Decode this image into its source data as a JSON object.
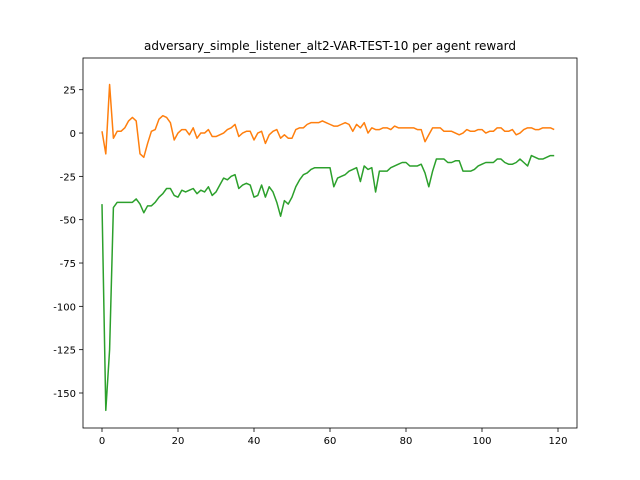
{
  "chart_data": {
    "type": "line",
    "title": "adversary_simple_listener_alt2-VAR-TEST-10 per agent reward",
    "x": [
      0,
      1,
      2,
      3,
      4,
      5,
      6,
      7,
      8,
      9,
      10,
      11,
      12,
      13,
      14,
      15,
      16,
      17,
      18,
      19,
      20,
      21,
      22,
      23,
      24,
      25,
      26,
      27,
      28,
      29,
      30,
      31,
      32,
      33,
      34,
      35,
      36,
      37,
      38,
      39,
      40,
      41,
      42,
      43,
      44,
      45,
      46,
      47,
      48,
      49,
      50,
      51,
      52,
      53,
      54,
      55,
      56,
      57,
      58,
      59,
      60,
      61,
      62,
      63,
      64,
      65,
      66,
      67,
      68,
      69,
      70,
      71,
      72,
      73,
      74,
      75,
      76,
      77,
      78,
      79,
      80,
      81,
      82,
      83,
      84,
      85,
      86,
      87,
      88,
      89,
      90,
      91,
      92,
      93,
      94,
      95,
      96,
      97,
      98,
      99,
      100,
      101,
      102,
      103,
      104,
      105,
      106,
      107,
      108,
      109,
      110,
      111,
      112,
      113,
      114,
      115,
      116,
      117,
      118,
      119
    ],
    "series": [
      {
        "color": "#ff7f0e",
        "values": [
          1,
          -12,
          28,
          -3,
          1,
          1,
          3,
          7,
          9,
          7,
          -12,
          -14,
          -6,
          1,
          2,
          8,
          10,
          9,
          6,
          -4,
          0,
          2,
          2,
          -1,
          3,
          -3,
          0,
          0,
          2,
          -2,
          -2,
          -1,
          0,
          2,
          3,
          5,
          -2,
          0,
          1,
          1,
          -4,
          0,
          1,
          -6,
          -1,
          1,
          2,
          -3,
          -1,
          -3,
          -3,
          2,
          3,
          3,
          5,
          6,
          6,
          6,
          7,
          6,
          5,
          4,
          4,
          5,
          6,
          5,
          1,
          5,
          3,
          6,
          0,
          3,
          2,
          2,
          3,
          3,
          2,
          4,
          3,
          3,
          3,
          3,
          3,
          2,
          2,
          -5,
          -1,
          3,
          3,
          3,
          1,
          1,
          1,
          0,
          -1,
          0,
          2,
          1,
          1,
          2,
          2,
          0,
          1,
          1,
          3,
          3,
          1,
          1,
          2,
          -1,
          0,
          2,
          3,
          3,
          2,
          2,
          3,
          3,
          3,
          2
        ]
      },
      {
        "color": "#2ca02c",
        "values": [
          -41,
          -160,
          -125,
          -43,
          -40,
          -40,
          -40,
          -40,
          -40,
          -38,
          -41,
          -46,
          -42,
          -42,
          -40,
          -37,
          -35,
          -32,
          -32,
          -36,
          -37,
          -33,
          -34,
          -33,
          -32,
          -35,
          -33,
          -34,
          -31,
          -36,
          -34,
          -30,
          -26,
          -27,
          -25,
          -24,
          -32,
          -30,
          -29,
          -30,
          -37,
          -36,
          -30,
          -37,
          -31,
          -34,
          -40,
          -48,
          -39,
          -41,
          -37,
          -31,
          -27,
          -24,
          -23,
          -21,
          -20,
          -20,
          -20,
          -20,
          -20,
          -31,
          -26,
          -25,
          -24,
          -22,
          -21,
          -20,
          -28,
          -19,
          -21,
          -20,
          -34,
          -22,
          -22,
          -22,
          -20,
          -19,
          -18,
          -17,
          -17,
          -19,
          -19,
          -19,
          -18,
          -23,
          -31,
          -22,
          -15,
          -15,
          -15,
          -17,
          -17,
          -16,
          -16,
          -22,
          -22,
          -22,
          -21,
          -19,
          -18,
          -17,
          -17,
          -17,
          -15,
          -15,
          -17,
          -18,
          -18,
          -17,
          -15,
          -17,
          -19,
          -13,
          -14,
          -15,
          -15,
          -14,
          -13,
          -13
        ]
      }
    ],
    "xlim": [
      -5,
      125
    ],
    "ylim": [
      -170.2,
      43.3
    ],
    "xticks": [
      0,
      20,
      40,
      60,
      80,
      100,
      120
    ],
    "yticks": [
      25,
      0,
      -25,
      -50,
      -75,
      -100,
      -125,
      -150
    ]
  }
}
